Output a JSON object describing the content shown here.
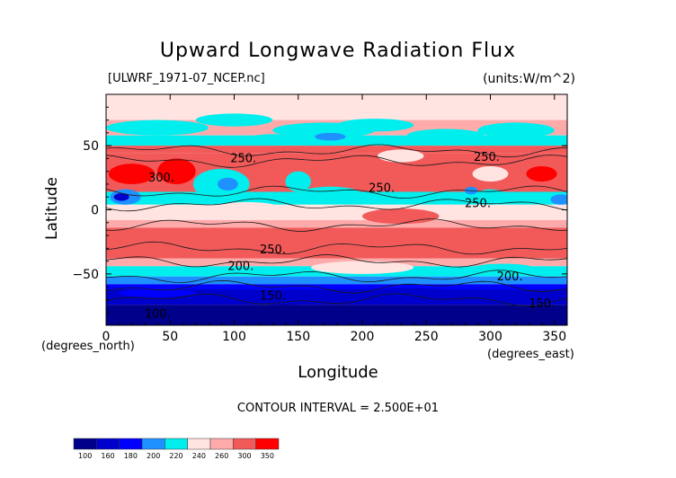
{
  "chart_data": {
    "type": "heatmap",
    "title": "Upward Longwave Radiation Flux",
    "dataset_label": "[ULWRF_1971-07_NCEP.nc]",
    "units_label": "(units:W/m^2)",
    "xlabel": "Longitude",
    "ylabel": "Latitude",
    "x_units_label": "(degrees_east)",
    "y_units_label": "(degrees_north)",
    "xlim": [
      0,
      360
    ],
    "ylim": [
      -90,
      90
    ],
    "x_ticks": [
      "0",
      "50",
      "100",
      "150",
      "200",
      "250",
      "300",
      "350"
    ],
    "y_ticks": [
      "50",
      "0",
      "−50"
    ],
    "contour_interval_label": "CONTOUR INTERVAL = 2.500E+01",
    "contour_labels": [
      "250",
      "300",
      "250",
      "250",
      "250",
      "250",
      "200",
      "200",
      "150",
      "150",
      "100"
    ],
    "colorbar": {
      "levels": [
        "100",
        "160",
        "180",
        "200",
        "220",
        "240",
        "260",
        "300",
        "350"
      ],
      "colors": [
        "#00008b",
        "#0000cd",
        "#0000ff",
        "#1e90ff",
        "#00eeee",
        "#ffe4e1",
        "#ffaaaa",
        "#f25a5a",
        "#ff0000"
      ]
    },
    "latitude_bands_approx": [
      {
        "lat_range": [
          60,
          90
        ],
        "flux": "240-260"
      },
      {
        "lat_range": [
          45,
          60
        ],
        "flux": "200-240"
      },
      {
        "lat_range": [
          15,
          45
        ],
        "flux": "260-350"
      },
      {
        "lat_range": [
          -10,
          15
        ],
        "flux": "200-260"
      },
      {
        "lat_range": [
          -40,
          -10
        ],
        "flux": "260-300"
      },
      {
        "lat_range": [
          -60,
          -40
        ],
        "flux": "200-240"
      },
      {
        "lat_range": [
          -90,
          -60
        ],
        "flux": "100-180"
      }
    ]
  }
}
